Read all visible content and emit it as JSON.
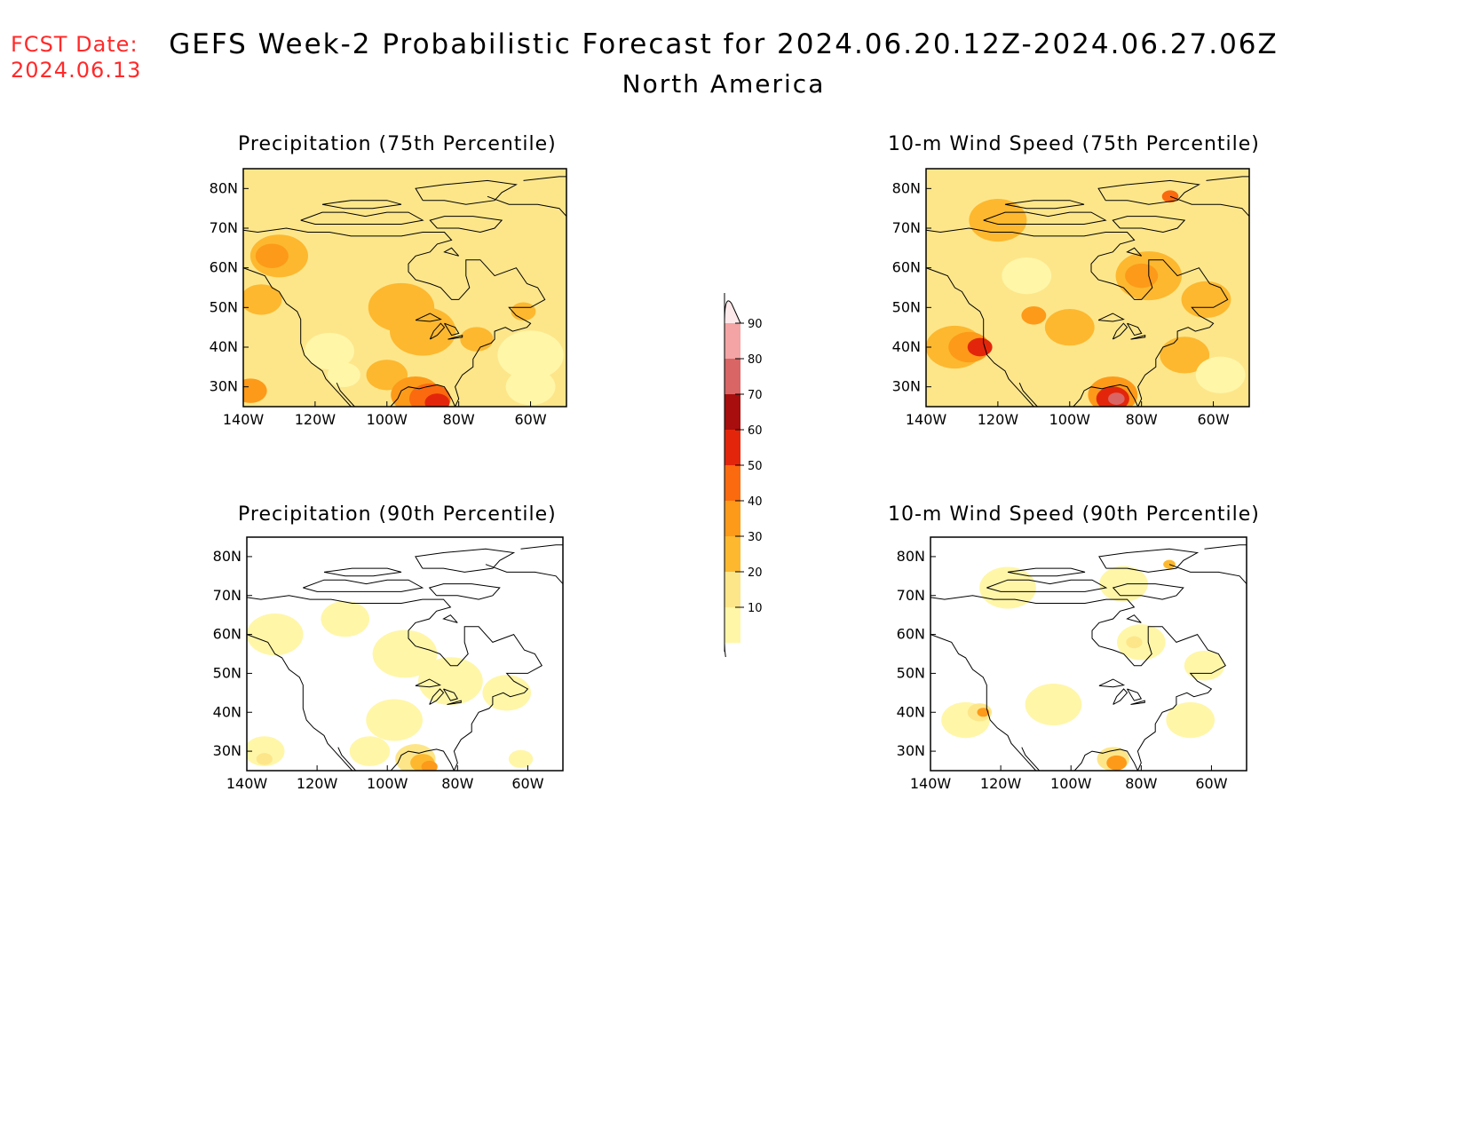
{
  "header": {
    "fcst_date_label": "FCST Date:",
    "fcst_date_value": "2024.06.13",
    "title": "GEFS Week-2 Probabilistic Forecast for 2024.06.20.12Z-2024.06.27.06Z",
    "subtitle": "North America"
  },
  "colors": {
    "fcst_date": "#ff2a2a",
    "levels": {
      "10": "#fff6a8",
      "20": "#fde68a",
      "30": "#fdb82f",
      "40": "#fd9a1a",
      "50": "#fb6a0e",
      "60": "#e3260b",
      "70": "#a80e0e",
      "80": "#d96565",
      "90": "#f4a4a4"
    }
  },
  "axes": {
    "lon_ticks": [
      "140W",
      "120W",
      "100W",
      "80W",
      "60W"
    ],
    "lat_ticks": [
      "80N",
      "70N",
      "60N",
      "50N",
      "40N",
      "30N"
    ]
  },
  "colorbar": {
    "levels": [
      "10",
      "20",
      "30",
      "40",
      "50",
      "60",
      "70",
      "80",
      "90"
    ]
  },
  "panels": [
    {
      "title": "Precipitation (75th Percentile)",
      "base": "#fde68a",
      "blobs": [
        {
          "level": "30",
          "lon": -130,
          "lat": 63,
          "r": 7
        },
        {
          "level": "40",
          "lon": -132,
          "lat": 63,
          "r": 4
        },
        {
          "level": "30",
          "lon": -135,
          "lat": 52,
          "r": 5
        },
        {
          "level": "30",
          "lon": -96,
          "lat": 50,
          "r": 8
        },
        {
          "level": "30",
          "lon": -90,
          "lat": 44,
          "r": 8
        },
        {
          "level": "30",
          "lon": -100,
          "lat": 33,
          "r": 5
        },
        {
          "level": "40",
          "lon": -92,
          "lat": 28,
          "r": 6
        },
        {
          "level": "50",
          "lon": -88,
          "lat": 27,
          "r": 5
        },
        {
          "level": "60",
          "lon": -86,
          "lat": 26,
          "r": 3
        },
        {
          "level": "40",
          "lon": -138,
          "lat": 29,
          "r": 4
        },
        {
          "level": "10",
          "lon": -116,
          "lat": 39,
          "r": 6
        },
        {
          "level": "10",
          "lon": -112,
          "lat": 33,
          "r": 4
        },
        {
          "level": "10",
          "lon": -60,
          "lat": 38,
          "r": 8
        },
        {
          "level": "10",
          "lon": -60,
          "lat": 30,
          "r": 6
        },
        {
          "level": "30",
          "lon": -75,
          "lat": 42,
          "r": 4
        },
        {
          "level": "30",
          "lon": -62,
          "lat": 49,
          "r": 3
        }
      ]
    },
    {
      "title": "10-m Wind Speed (75th Percentile)",
      "base": "#fde68a",
      "blobs": [
        {
          "level": "30",
          "lon": -120,
          "lat": 72,
          "r": 7
        },
        {
          "level": "30",
          "lon": -78,
          "lat": 58,
          "r": 8
        },
        {
          "level": "40",
          "lon": -80,
          "lat": 58,
          "r": 4
        },
        {
          "level": "30",
          "lon": -62,
          "lat": 52,
          "r": 6
        },
        {
          "level": "30",
          "lon": -132,
          "lat": 40,
          "r": 7
        },
        {
          "level": "40",
          "lon": -128,
          "lat": 40,
          "r": 5
        },
        {
          "level": "60",
          "lon": -125,
          "lat": 40,
          "r": 3
        },
        {
          "level": "30",
          "lon": -100,
          "lat": 45,
          "r": 6
        },
        {
          "level": "30",
          "lon": -68,
          "lat": 38,
          "r": 6
        },
        {
          "level": "40",
          "lon": -88,
          "lat": 28,
          "r": 6
        },
        {
          "level": "60",
          "lon": -88,
          "lat": 27,
          "r": 4
        },
        {
          "level": "80",
          "lon": -87,
          "lat": 27,
          "r": 2
        },
        {
          "level": "10",
          "lon": -112,
          "lat": 58,
          "r": 6
        },
        {
          "level": "10",
          "lon": -58,
          "lat": 33,
          "r": 6
        },
        {
          "level": "50",
          "lon": -72,
          "lat": 78,
          "r": 2
        },
        {
          "level": "40",
          "lon": -110,
          "lat": 48,
          "r": 3
        }
      ]
    },
    {
      "title": "Precipitation (90th Percentile)",
      "base": "#ffffff",
      "blobs": [
        {
          "level": "10",
          "lon": -132,
          "lat": 60,
          "r": 7
        },
        {
          "level": "10",
          "lon": -112,
          "lat": 64,
          "r": 6
        },
        {
          "level": "10",
          "lon": -95,
          "lat": 55,
          "r": 8
        },
        {
          "level": "10",
          "lon": -82,
          "lat": 48,
          "r": 8
        },
        {
          "level": "10",
          "lon": -98,
          "lat": 38,
          "r": 7
        },
        {
          "level": "10",
          "lon": -66,
          "lat": 45,
          "r": 6
        },
        {
          "level": "10",
          "lon": -135,
          "lat": 30,
          "r": 5
        },
        {
          "level": "10",
          "lon": -105,
          "lat": 30,
          "r": 5
        },
        {
          "level": "20",
          "lon": -92,
          "lat": 28,
          "r": 5
        },
        {
          "level": "30",
          "lon": -90,
          "lat": 27,
          "r": 3
        },
        {
          "level": "40",
          "lon": -88,
          "lat": 26,
          "r": 2
        },
        {
          "level": "20",
          "lon": -135,
          "lat": 28,
          "r": 2
        },
        {
          "level": "10",
          "lon": -62,
          "lat": 28,
          "r": 3
        }
      ]
    },
    {
      "title": "10-m Wind Speed (90th Percentile)",
      "base": "#ffffff",
      "blobs": [
        {
          "level": "10",
          "lon": -118,
          "lat": 72,
          "r": 7
        },
        {
          "level": "10",
          "lon": -85,
          "lat": 73,
          "r": 6
        },
        {
          "level": "10",
          "lon": -80,
          "lat": 58,
          "r": 6
        },
        {
          "level": "20",
          "lon": -82,
          "lat": 58,
          "r": 2
        },
        {
          "level": "10",
          "lon": -62,
          "lat": 52,
          "r": 5
        },
        {
          "level": "10",
          "lon": -105,
          "lat": 42,
          "r": 7
        },
        {
          "level": "10",
          "lon": -130,
          "lat": 38,
          "r": 6
        },
        {
          "level": "20",
          "lon": -126,
          "lat": 40,
          "r": 3
        },
        {
          "level": "40",
          "lon": -125,
          "lat": 40,
          "r": 1.5
        },
        {
          "level": "10",
          "lon": -66,
          "lat": 38,
          "r": 6
        },
        {
          "level": "20",
          "lon": -88,
          "lat": 28,
          "r": 4
        },
        {
          "level": "40",
          "lon": -87,
          "lat": 27,
          "r": 2.5
        },
        {
          "level": "30",
          "lon": -72,
          "lat": 78,
          "r": 1.5
        }
      ]
    }
  ]
}
